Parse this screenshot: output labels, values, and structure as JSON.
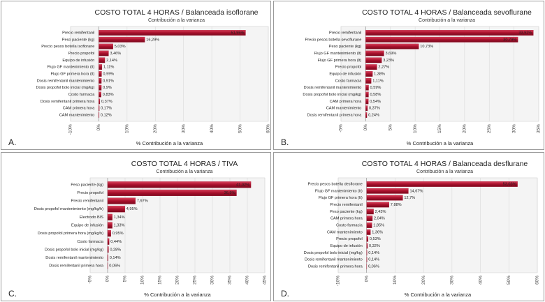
{
  "chart_data": [
    {
      "type": "bar",
      "orientation": "horizontal",
      "panel": "A.",
      "title": "COSTO TOTAL 4 HORAS / Balanceada isoflorane",
      "subtitle": "Contribución a la varianza",
      "xlabel": "% Contribución a la varianza",
      "categories": [
        "Precio remifentanil",
        "Peso paciente (kg)",
        "Precio pesos botella isoflorane",
        "Precio propofol",
        "Equipo de infusión",
        "Flujo GF mantenimiento (lt)",
        "Flujo GF primera hora (lt)",
        "Dosis remifentanil mantenimiento",
        "Dosis propofol bolo inicial (mg/kg)",
        "Costo farmacia",
        "Dosis remifentanil primera hora",
        "CAM primera hora",
        "CAM mantenimiento"
      ],
      "values": [
        51.95,
        16.29,
        5.03,
        3.46,
        2.14,
        1.11,
        0.99,
        0.91,
        0.9,
        0.83,
        0.37,
        0.17,
        0.12
      ],
      "value_labels": [
        "51,95%",
        "16,29%",
        "5,03%",
        "3,46%",
        "2,14%",
        "1,11%",
        "0,99%",
        "0,91%",
        "0,9%",
        "0,83%",
        "0,37%",
        "0,17%",
        "0,12%"
      ],
      "color": "#a8102c",
      "xlim": [
        -10,
        60
      ],
      "xticks": [
        {
          "value": -10,
          "label": "-10%"
        },
        {
          "value": 0,
          "label": "0%"
        },
        {
          "value": 10,
          "label": "10%"
        },
        {
          "value": 20,
          "label": "20%"
        },
        {
          "value": 30,
          "label": "30%"
        },
        {
          "value": 40,
          "label": "40%"
        },
        {
          "value": 50,
          "label": "50%"
        },
        {
          "value": 60,
          "label": "60%"
        }
      ],
      "grid": true
    },
    {
      "type": "bar",
      "orientation": "horizontal",
      "panel": "B.",
      "title": "COSTO TOTAL 4 HORAS / Balanceada sevoflurane",
      "subtitle": "Contribución a la varianza",
      "xlabel": "% Contribución a la varianza",
      "categories": [
        "Precio remifentanil",
        "Precio pesos botella sevoflurane",
        "Peso paciente (kg)",
        "Flujo GF mantenimiento (lt)",
        "Flujo GF primera hora (lt)",
        "Precio propofol",
        "Equipo de infusión",
        "Costo farmacia",
        "Dosis remifentanil mantenimiento",
        "Dosis propofol bolo inicial (mg/kg)",
        "CAM primera hora",
        "CAM mantenimiento",
        "Dosis remifentanil primera hora"
      ],
      "values": [
        33.92,
        30.79,
        10.73,
        3.69,
        3.23,
        2.27,
        1.38,
        1.11,
        0.59,
        0.58,
        0.54,
        0.37,
        0.24
      ],
      "value_labels": [
        "33,92%",
        "30,79%",
        "10,73%",
        "3,69%",
        "3,23%",
        "2,27%",
        "1,38%",
        "1,11%",
        "0,59%",
        "0,58%",
        "0,54%",
        "0,37%",
        "0,24%"
      ],
      "color": "#a8102c",
      "xlim": [
        -5,
        35
      ],
      "xticks": [
        {
          "value": -5,
          "label": "-5%"
        },
        {
          "value": 0,
          "label": "0%"
        },
        {
          "value": 5,
          "label": "5%"
        },
        {
          "value": 10,
          "label": "10%"
        },
        {
          "value": 15,
          "label": "15%"
        },
        {
          "value": 20,
          "label": "20%"
        },
        {
          "value": 25,
          "label": "25%"
        },
        {
          "value": 30,
          "label": "30%"
        },
        {
          "value": 35,
          "label": "35%"
        }
      ],
      "grid": true
    },
    {
      "type": "bar",
      "orientation": "horizontal",
      "panel": "C.",
      "title": "COSTO TOTAL 4 HORAS / TIVA",
      "subtitle": "Contribución a la varianza",
      "xlabel": "% Contribución a la varianza",
      "categories": [
        "Peso paciente (kg)",
        "Precio propofol",
        "Precio remifentanil",
        "Dosis propofol mantenimiento (mg/kg/h)",
        "Electrodo BIS",
        "Equipo de infusión",
        "Dosis propofol primera hora (mg/kg/h)",
        "Costo farmacia",
        "Dosis propofol bolo inicial (mg/kg)",
        "Dosis remifentanil mantenimiento",
        "Dosis remifentanil primera hora"
      ],
      "values": [
        41.02,
        36.9,
        7.97,
        4.95,
        1.34,
        1.33,
        0.95,
        0.44,
        0.28,
        0.14,
        0.06
      ],
      "value_labels": [
        "41,02%",
        "36,9%",
        "7,97%",
        "4,95%",
        "1,34%",
        "1,33%",
        "0,95%",
        "0,44%",
        "0,28%",
        "0,14%",
        "0,06%"
      ],
      "color": "#a8102c",
      "xlim": [
        -5,
        45
      ],
      "xticks": [
        {
          "value": -5,
          "label": "-5%"
        },
        {
          "value": 0,
          "label": "0%"
        },
        {
          "value": 5,
          "label": "5%"
        },
        {
          "value": 10,
          "label": "10%"
        },
        {
          "value": 15,
          "label": "15%"
        },
        {
          "value": 20,
          "label": "20%"
        },
        {
          "value": 25,
          "label": "25%"
        },
        {
          "value": 30,
          "label": "30%"
        },
        {
          "value": 35,
          "label": "35%"
        },
        {
          "value": 40,
          "label": "40%"
        },
        {
          "value": 45,
          "label": "45%"
        }
      ],
      "grid": true
    },
    {
      "type": "bar",
      "orientation": "horizontal",
      "panel": "D.",
      "title": "COSTO TOTAL 4 HORAS / Balanceada desflurane",
      "subtitle": "Contribución a la varianza",
      "xlabel": "% Contribución a la varianza",
      "categories": [
        "Precio pesos botella desflorane",
        "Flujo GF mantenimiento (lt)",
        "Flujo GF primera hora (lt)",
        "Precio remifentanil",
        "Peso paciente (kg)",
        "CAM primera hora",
        "Costo farmacia",
        "CAM mantenimiento",
        "Precio propofol",
        "Equipo de infusión",
        "Dosis propofol bolo inicial (mg/kg)",
        "Dosis remifentanil mantenimiento",
        "Dosis remifentanil primera hora"
      ],
      "values": [
        53.03,
        14.67,
        12.7,
        7.88,
        2.43,
        2.04,
        1.85,
        1.36,
        0.53,
        0.32,
        0.14,
        0.14,
        0.06
      ],
      "value_labels": [
        "53,03%",
        "14,67%",
        "12,7%",
        "7,88%",
        "2,43%",
        "2,04%",
        "1,85%",
        "1,36%",
        "0,53%",
        "0,32%",
        "0,14%",
        "0,14%",
        "0,06%"
      ],
      "color": "#a8102c",
      "xlim": [
        -10,
        60
      ],
      "xticks": [
        {
          "value": -10,
          "label": "-10%"
        },
        {
          "value": 0,
          "label": "0%"
        },
        {
          "value": 10,
          "label": "10%"
        },
        {
          "value": 20,
          "label": "20%"
        },
        {
          "value": 30,
          "label": "30%"
        },
        {
          "value": 40,
          "label": "40%"
        },
        {
          "value": 50,
          "label": "50%"
        },
        {
          "value": 60,
          "label": "60%"
        }
      ],
      "grid": true
    }
  ]
}
